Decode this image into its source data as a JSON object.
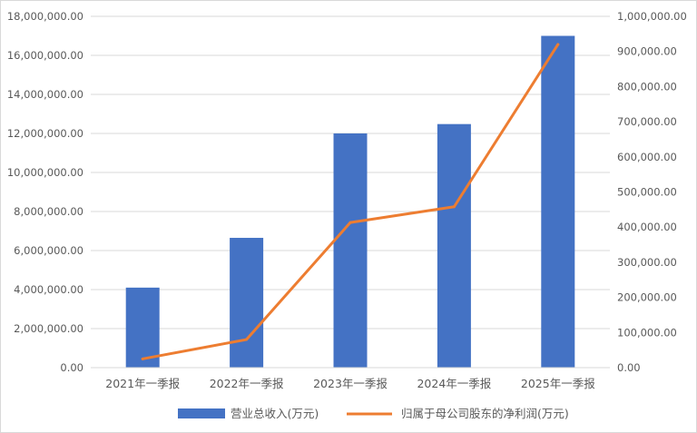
{
  "chart_data": {
    "type": "bar",
    "title": "",
    "categories": [
      "2021年一季报",
      "2022年一季报",
      "2023年一季报",
      "2024年一季报",
      "2025年一季报"
    ],
    "series": [
      {
        "name": "营业总收入(万元)",
        "type": "bar",
        "axis": "left",
        "color": "#4472C4",
        "values": [
          4100000,
          6650000,
          12000000,
          12480000,
          17000000
        ]
      },
      {
        "name": "归属于母公司股东的净利润(万元)",
        "type": "line",
        "axis": "right",
        "color": "#ED7D31",
        "values": [
          25000,
          80000,
          413000,
          458000,
          920000
        ]
      }
    ],
    "y_left": {
      "lim": [
        0,
        18000000
      ],
      "ticks": [
        "0.00",
        "2,000,000.00",
        "4,000,000.00",
        "6,000,000.00",
        "8,000,000.00",
        "10,000,000.00",
        "12,000,000.00",
        "14,000,000.00",
        "16,000,000.00",
        "18,000,000.00"
      ]
    },
    "y_right": {
      "lim": [
        0,
        1000000
      ],
      "ticks": [
        "0.00",
        "100,000.00",
        "200,000.00",
        "300,000.00",
        "400,000.00",
        "500,000.00",
        "600,000.00",
        "700,000.00",
        "800,000.00",
        "900,000.00",
        "1,000,000.00"
      ]
    },
    "grid": true,
    "legend": "bottom"
  }
}
